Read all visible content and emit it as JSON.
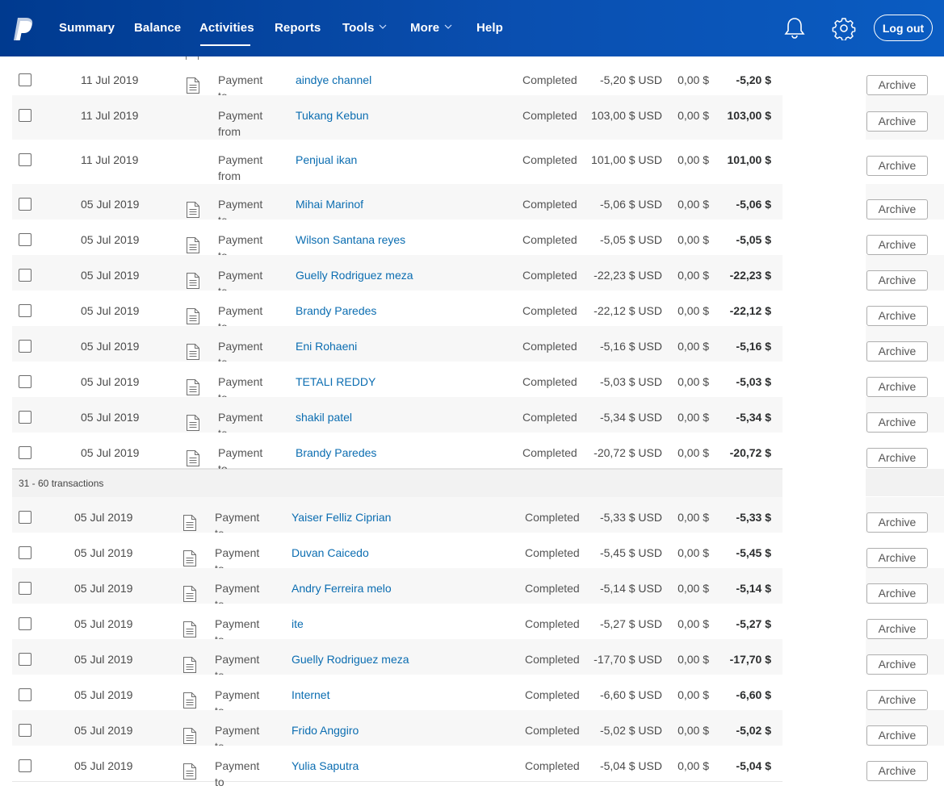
{
  "nav": {
    "items": [
      {
        "label": "Summary"
      },
      {
        "label": "Balance"
      },
      {
        "label": "Activities"
      },
      {
        "label": "Reports"
      },
      {
        "label": "Tools"
      },
      {
        "label": "More"
      },
      {
        "label": "Help"
      }
    ],
    "active": "Activities",
    "logout_label": "Log out",
    "icons": [
      "paypal-logo",
      "bell-icon",
      "gear-icon"
    ]
  },
  "archive_label": "Archive",
  "section_label": "31 - 60 transactions",
  "rows_top": [
    {
      "date": "11 Jul 2019",
      "type": "Payment to",
      "name": "aindye channel",
      "status": "Completed",
      "amount": "-5,20 $ USD",
      "fee": "0,00 $",
      "net": "-5,20 $",
      "icon": true
    },
    {
      "date": "11 Jul 2019",
      "type": "Payment from",
      "name": "Tukang Kebun",
      "status": "Completed",
      "amount": "103,00 $ USD",
      "fee": "0,00 $",
      "net": "103,00 $",
      "icon": false
    },
    {
      "date": "11 Jul 2019",
      "type": "Payment from",
      "name": "Penjual ikan",
      "status": "Completed",
      "amount": "101,00 $ USD",
      "fee": "0,00 $",
      "net": "101,00 $",
      "icon": false
    },
    {
      "date": "05 Jul 2019",
      "type": "Payment to",
      "name": "Mihai Marinof",
      "status": "Completed",
      "amount": "-5,06 $ USD",
      "fee": "0,00 $",
      "net": "-5,06 $",
      "icon": true
    },
    {
      "date": "05 Jul 2019",
      "type": "Payment to",
      "name": "Wilson Santana reyes",
      "status": "Completed",
      "amount": "-5,05 $ USD",
      "fee": "0,00 $",
      "net": "-5,05 $",
      "icon": true
    },
    {
      "date": "05 Jul 2019",
      "type": "Payment to",
      "name": "Guelly Rodriguez meza",
      "status": "Completed",
      "amount": "-22,23 $ USD",
      "fee": "0,00 $",
      "net": "-22,23 $",
      "icon": true
    },
    {
      "date": "05 Jul 2019",
      "type": "Payment to",
      "name": "Brandy Paredes",
      "status": "Completed",
      "amount": "-22,12 $ USD",
      "fee": "0,00 $",
      "net": "-22,12 $",
      "icon": true
    },
    {
      "date": "05 Jul 2019",
      "type": "Payment to",
      "name": "Eni Rohaeni",
      "status": "Completed",
      "amount": "-5,16 $ USD",
      "fee": "0,00 $",
      "net": "-5,16 $",
      "icon": true
    },
    {
      "date": "05 Jul 2019",
      "type": "Payment to",
      "name": "TETALI REDDY",
      "status": "Completed",
      "amount": "-5,03 $ USD",
      "fee": "0,00 $",
      "net": "-5,03 $",
      "icon": true
    },
    {
      "date": "05 Jul 2019",
      "type": "Payment to",
      "name": "shakil patel",
      "status": "Completed",
      "amount": "-5,34 $ USD",
      "fee": "0,00 $",
      "net": "-5,34 $",
      "icon": true
    },
    {
      "date": "05 Jul 2019",
      "type": "Payment to",
      "name": "Brandy Paredes",
      "status": "Completed",
      "amount": "-20,72 $ USD",
      "fee": "0,00 $",
      "net": "-20,72 $",
      "icon": true
    }
  ],
  "rows_bottom": [
    {
      "date": "05 Jul 2019",
      "type": "Payment to",
      "name": "Yaiser Felliz Ciprian",
      "status": "Completed",
      "amount": "-5,33 $ USD",
      "fee": "0,00 $",
      "net": "-5,33 $",
      "icon": true
    },
    {
      "date": "05 Jul 2019",
      "type": "Payment to",
      "name": "Duvan Caicedo",
      "status": "Completed",
      "amount": "-5,45 $ USD",
      "fee": "0,00 $",
      "net": "-5,45 $",
      "icon": true
    },
    {
      "date": "05 Jul 2019",
      "type": "Payment to",
      "name": "Andry Ferreira melo",
      "status": "Completed",
      "amount": "-5,14 $ USD",
      "fee": "0,00 $",
      "net": "-5,14 $",
      "icon": true
    },
    {
      "date": "05 Jul 2019",
      "type": "Payment to",
      "name": "ite",
      "status": "Completed",
      "amount": "-5,27 $ USD",
      "fee": "0,00 $",
      "net": "-5,27 $",
      "icon": true
    },
    {
      "date": "05 Jul 2019",
      "type": "Payment to",
      "name": "Guelly Rodriguez meza",
      "status": "Completed",
      "amount": "-17,70 $ USD",
      "fee": "0,00 $",
      "net": "-17,70 $",
      "icon": true
    },
    {
      "date": "05 Jul 2019",
      "type": "Payment to",
      "name": "Internet",
      "status": "Completed",
      "amount": "-6,60 $ USD",
      "fee": "0,00 $",
      "net": "-6,60 $",
      "icon": true
    },
    {
      "date": "05 Jul 2019",
      "type": "Payment to",
      "name": "Frido Anggiro",
      "status": "Completed",
      "amount": "-5,02 $ USD",
      "fee": "0,00 $",
      "net": "-5,02 $",
      "icon": true
    },
    {
      "date": "05 Jul 2019",
      "type": "Payment to",
      "name": "Yulia Saputra",
      "status": "Completed",
      "amount": "-5,04 $ USD",
      "fee": "0,00 $",
      "net": "-5,04 $",
      "icon": true
    }
  ]
}
